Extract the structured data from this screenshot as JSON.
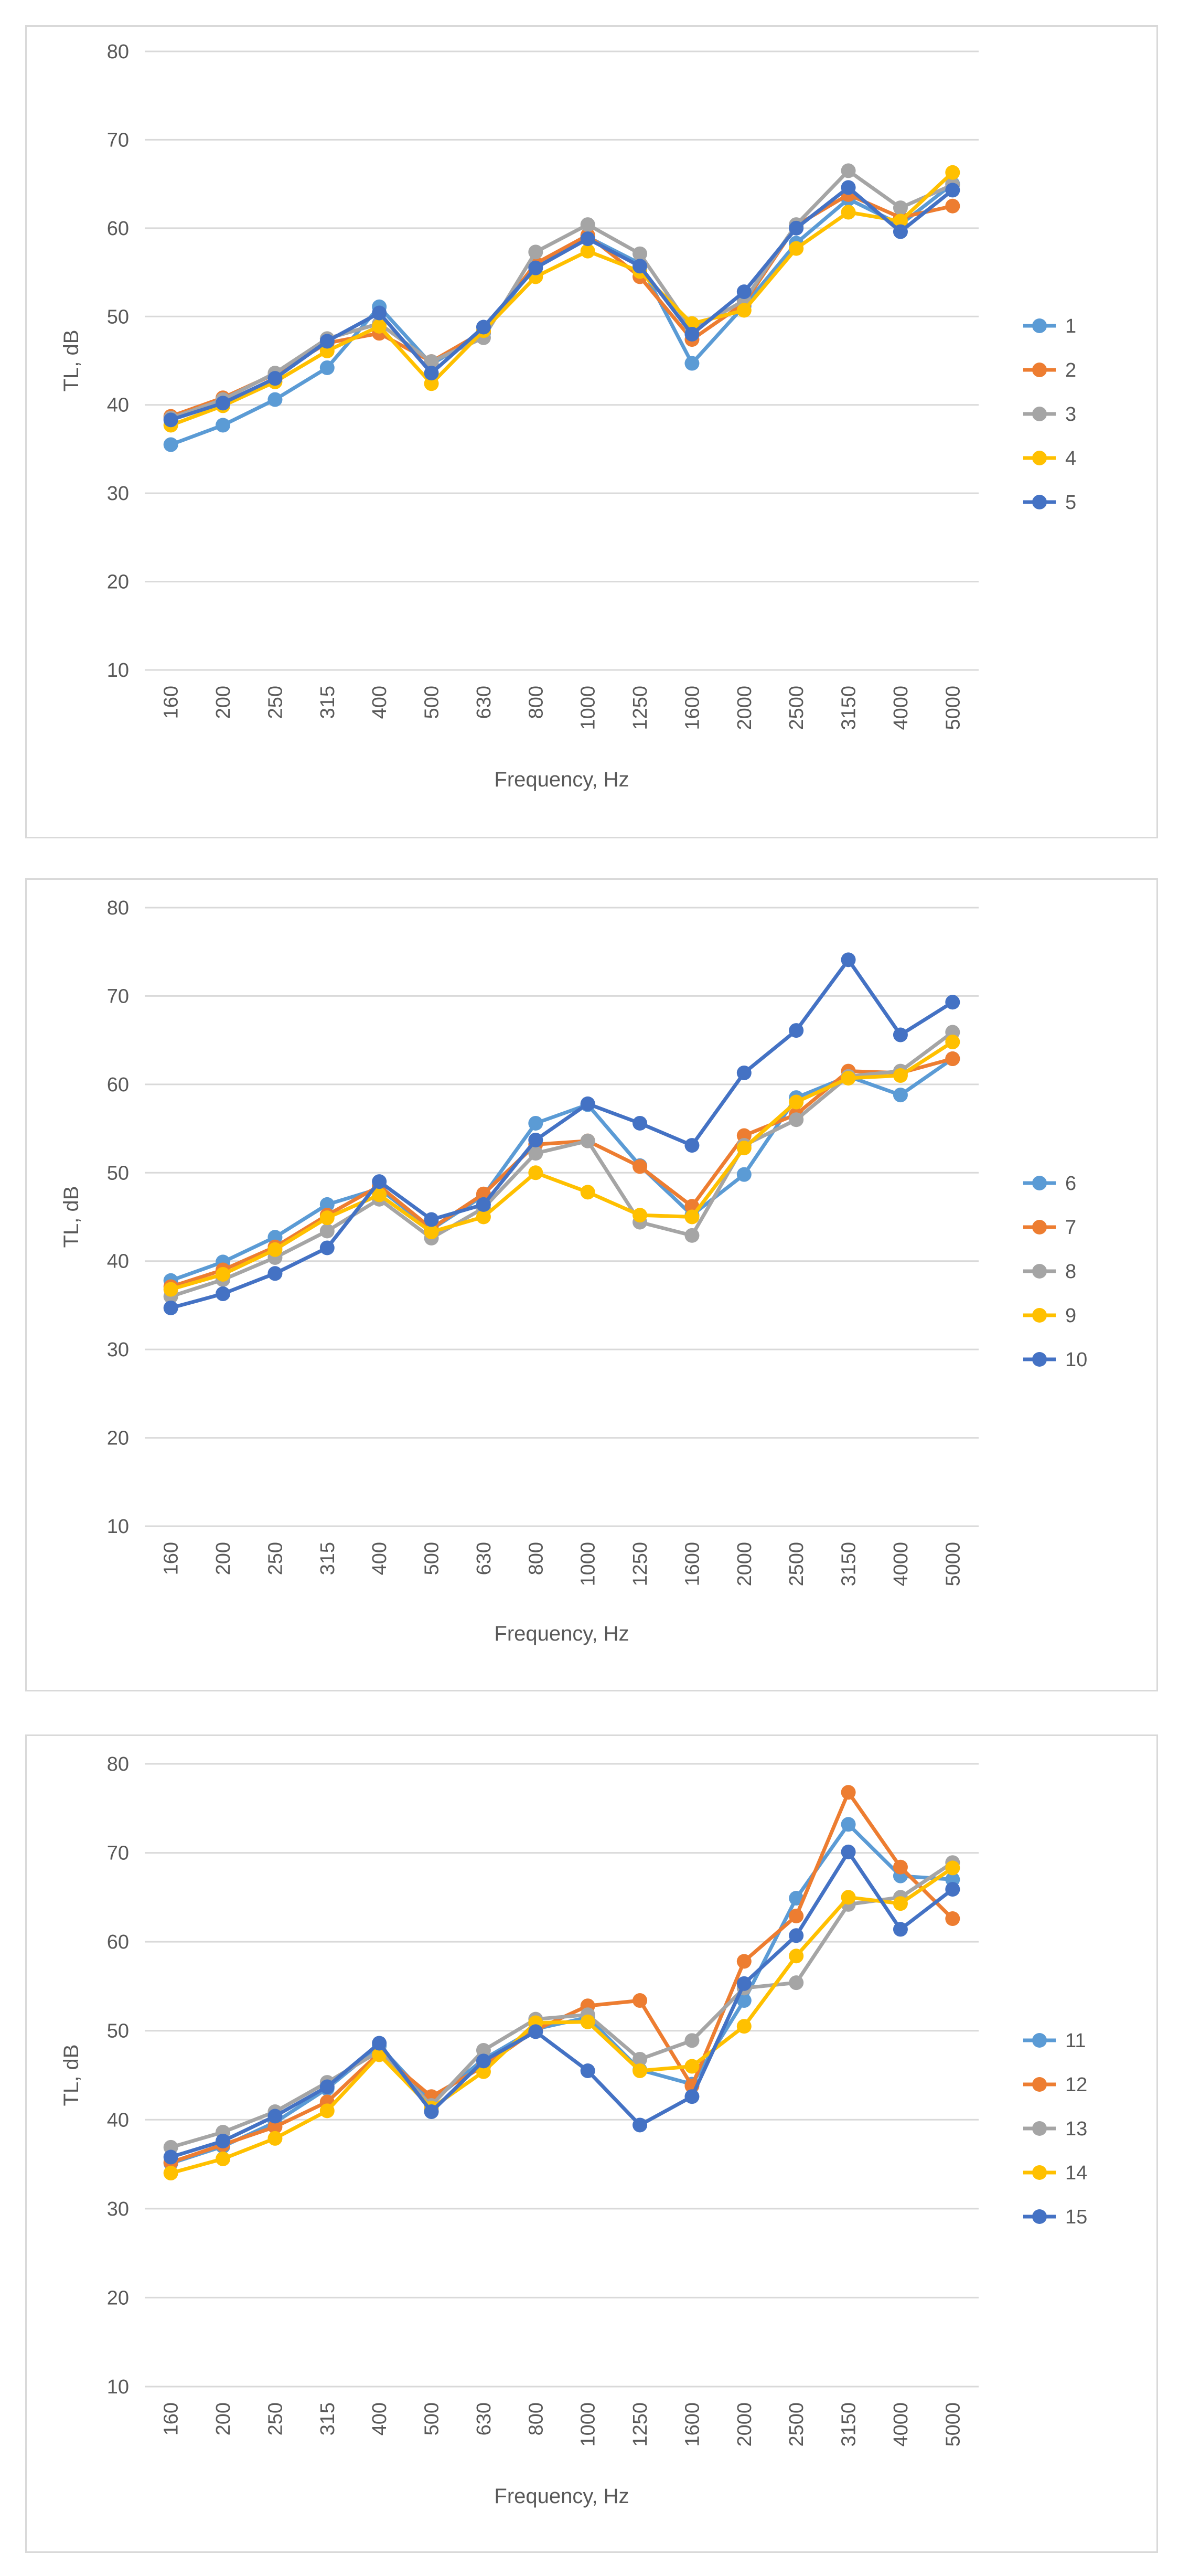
{
  "chart_data": [
    {
      "type": "line",
      "title": "",
      "xlabel": "Frequency, Hz",
      "ylabel": "TL, dB",
      "ylim": [
        10,
        80
      ],
      "yticks": [
        "10",
        "20",
        "30",
        "40",
        "50",
        "60",
        "70",
        "80"
      ],
      "categories": [
        "160",
        "200",
        "250",
        "315",
        "400",
        "500",
        "630",
        "800",
        "1000",
        "1250",
        "1600",
        "2000",
        "2500",
        "3150",
        "4000",
        "5000"
      ],
      "legend_position": "right",
      "series": [
        {
          "name": "1",
          "color": "#5B9BD5",
          "values": [
            35.5,
            37.7,
            40.6,
            44.2,
            51.1,
            44.6,
            48.1,
            55.8,
            59.0,
            56.0,
            44.7,
            51.2,
            58.3,
            63.3,
            60.4,
            65.0
          ]
        },
        {
          "name": "2",
          "color": "#ED7D31",
          "values": [
            38.7,
            40.8,
            43.5,
            47.0,
            48.1,
            44.9,
            48.3,
            56.0,
            59.2,
            54.5,
            47.4,
            51.5,
            60.3,
            63.8,
            61.2,
            62.5
          ]
        },
        {
          "name": "3",
          "color": "#A5A5A5",
          "values": [
            38.5,
            40.6,
            43.6,
            47.5,
            49.2,
            44.9,
            47.6,
            57.3,
            60.4,
            57.1,
            48.5,
            51.8,
            60.4,
            66.5,
            62.3,
            64.9
          ]
        },
        {
          "name": "4",
          "color": "#FFC000",
          "values": [
            37.7,
            39.9,
            42.6,
            46.1,
            48.9,
            42.4,
            48.4,
            54.5,
            57.4,
            55.1,
            49.2,
            50.7,
            57.7,
            61.8,
            60.8,
            66.3
          ]
        },
        {
          "name": "5",
          "color": "#4472C4",
          "values": [
            38.3,
            40.2,
            43.0,
            47.2,
            50.4,
            43.6,
            48.8,
            55.5,
            58.8,
            55.7,
            48.0,
            52.8,
            60.0,
            64.6,
            59.6,
            64.3
          ]
        }
      ]
    },
    {
      "type": "line",
      "title": "",
      "xlabel": "Frequency, Hz",
      "ylabel": "TL, dB",
      "ylim": [
        10,
        80
      ],
      "yticks": [
        "10",
        "20",
        "30",
        "40",
        "50",
        "60",
        "70",
        "80"
      ],
      "categories": [
        "160",
        "200",
        "250",
        "315",
        "400",
        "500",
        "630",
        "800",
        "1000",
        "1250",
        "1600",
        "2000",
        "2500",
        "3150",
        "4000",
        "5000"
      ],
      "legend_position": "right",
      "series": [
        {
          "name": "6",
          "color": "#5B9BD5",
          "values": [
            37.8,
            39.9,
            42.7,
            46.4,
            48.2,
            43.6,
            47.4,
            55.6,
            57.7,
            50.8,
            45.2,
            49.8,
            58.5,
            60.9,
            58.8,
            62.9
          ]
        },
        {
          "name": "7",
          "color": "#ED7D31",
          "values": [
            37.1,
            39.0,
            41.6,
            45.2,
            48.5,
            43.7,
            47.6,
            53.2,
            53.6,
            50.7,
            46.2,
            54.2,
            56.6,
            61.5,
            61.3,
            62.9
          ]
        },
        {
          "name": "8",
          "color": "#A5A5A5",
          "values": [
            36.0,
            37.9,
            40.4,
            43.4,
            47.0,
            42.6,
            46.0,
            52.2,
            53.6,
            44.4,
            42.9,
            53.1,
            56.0,
            60.9,
            61.5,
            65.9
          ]
        },
        {
          "name": "9",
          "color": "#FFC000",
          "values": [
            36.8,
            38.5,
            41.3,
            44.9,
            47.5,
            43.3,
            45.0,
            50.0,
            47.8,
            45.2,
            45.0,
            52.8,
            58.0,
            60.7,
            61.0,
            64.8
          ]
        },
        {
          "name": "10",
          "color": "#4472C4",
          "values": [
            34.7,
            36.3,
            38.6,
            41.5,
            49.0,
            44.7,
            46.4,
            53.7,
            57.8,
            55.6,
            53.1,
            61.3,
            66.1,
            74.1,
            65.6,
            69.3
          ]
        }
      ]
    },
    {
      "type": "line",
      "title": "",
      "xlabel": "Frequency, Hz",
      "ylabel": "TL, dB",
      "ylim": [
        10,
        80
      ],
      "yticks": [
        "10",
        "20",
        "30",
        "40",
        "50",
        "60",
        "70",
        "80"
      ],
      "categories": [
        "160",
        "200",
        "250",
        "315",
        "400",
        "500",
        "630",
        "800",
        "1000",
        "1250",
        "1600",
        "2000",
        "2500",
        "3150",
        "4000",
        "5000"
      ],
      "legend_position": "right",
      "series": [
        {
          "name": "11",
          "color": "#5B9BD5",
          "values": [
            35.1,
            37.0,
            39.7,
            43.5,
            48.3,
            42.0,
            46.8,
            50.2,
            51.5,
            45.6,
            44.0,
            53.4,
            64.9,
            73.2,
            67.4,
            67.0
          ]
        },
        {
          "name": "12",
          "color": "#ED7D31",
          "values": [
            35.2,
            37.2,
            39.2,
            42.0,
            47.5,
            42.6,
            46.0,
            50.1,
            52.8,
            53.4,
            43.8,
            57.8,
            62.9,
            76.8,
            68.4,
            62.6
          ]
        },
        {
          "name": "13",
          "color": "#A5A5A5",
          "values": [
            36.9,
            38.6,
            40.9,
            44.2,
            47.7,
            41.6,
            47.8,
            51.3,
            51.8,
            46.8,
            48.9,
            54.8,
            55.4,
            64.2,
            65.0,
            68.9
          ]
        },
        {
          "name": "14",
          "color": "#FFC000",
          "values": [
            34.0,
            35.6,
            37.9,
            41.0,
            47.3,
            41.3,
            45.4,
            50.9,
            51.0,
            45.5,
            46.0,
            50.5,
            58.4,
            65.0,
            64.3,
            68.3
          ]
        },
        {
          "name": "15",
          "color": "#4472C4",
          "values": [
            35.8,
            37.6,
            40.4,
            43.7,
            48.6,
            40.9,
            46.6,
            49.9,
            45.5,
            39.4,
            42.6,
            55.3,
            60.7,
            70.1,
            61.4,
            65.9
          ]
        }
      ]
    }
  ]
}
